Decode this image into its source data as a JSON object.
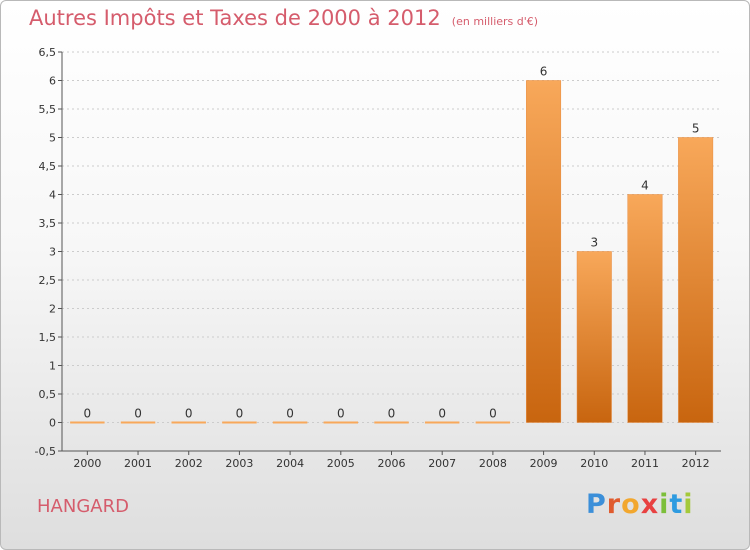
{
  "header": {
    "title": "Autres Impôts et Taxes de 2000 à 2012",
    "subtitle": "(en milliers d'€)"
  },
  "commune_name": "HANGARD",
  "logo": {
    "letters": [
      "P",
      "r",
      "o",
      "x",
      "i",
      "t",
      "i"
    ],
    "colors": [
      "#3b8fd9",
      "#e05b2e",
      "#f2a72e",
      "#e84141",
      "#7cbf3a",
      "#2e9be0",
      "#a4c93a"
    ]
  },
  "colors": {
    "title": "#d55c6c",
    "bar_light": "#f8a85a",
    "bar_dark": "#c8650f",
    "axis": "#555555",
    "grid": "#cccccc"
  },
  "chart_data": {
    "type": "bar",
    "title": "Autres Impôts et Taxes de 2000 à 2012",
    "subtitle": "(en milliers d'€)",
    "xlabel": "",
    "ylabel": "",
    "categories": [
      "2000",
      "2001",
      "2002",
      "2003",
      "2004",
      "2005",
      "2006",
      "2007",
      "2008",
      "2009",
      "2010",
      "2011",
      "2012"
    ],
    "values": [
      0,
      0,
      0,
      0,
      0,
      0,
      0,
      0,
      0,
      6,
      3,
      4,
      5
    ],
    "data_labels": [
      "0",
      "0",
      "0",
      "0",
      "0",
      "0",
      "0",
      "0",
      "0",
      "6",
      "3",
      "4",
      "5"
    ],
    "ylim": [
      -0.5,
      6.5
    ],
    "yticks": [
      -0.5,
      0,
      0.5,
      1,
      1.5,
      2,
      2.5,
      3,
      3.5,
      4,
      4.5,
      5,
      5.5,
      6,
      6.5
    ],
    "ytick_labels": [
      "-0,5",
      "0",
      "0,5",
      "1",
      "1,5",
      "2",
      "2,5",
      "3",
      "3,5",
      "4",
      "4,5",
      "5",
      "5,5",
      "6",
      "6,5"
    ],
    "grid": "horizontal dashed",
    "legend": "none"
  }
}
